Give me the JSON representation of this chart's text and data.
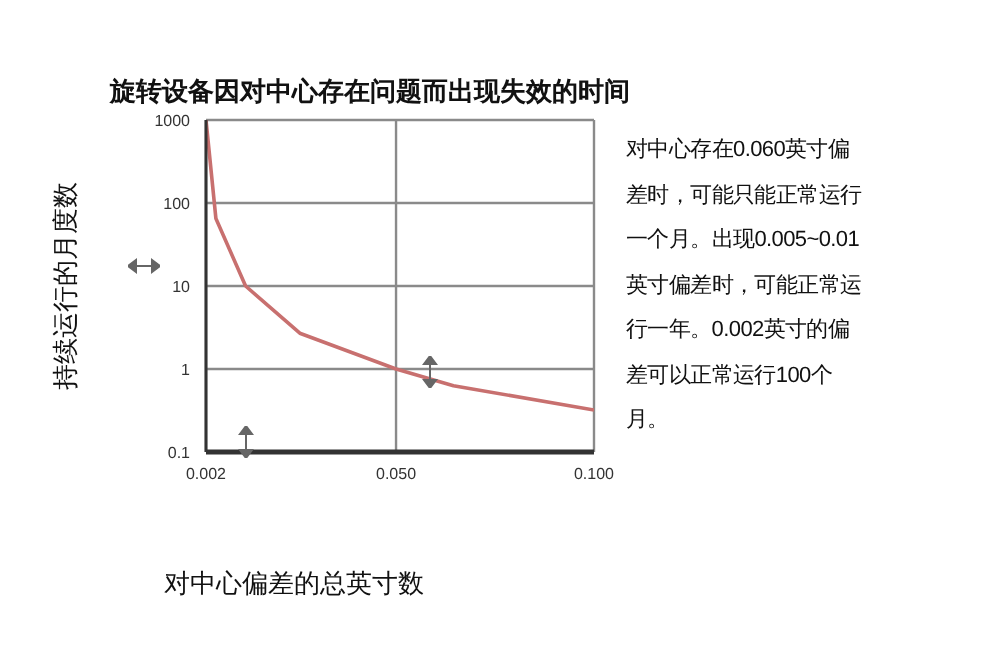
{
  "chart_data": {
    "type": "line",
    "title": "旋转设备因对中心存在问题而出现失效的时间",
    "xlabel": "对中心偏差的总英寸数",
    "ylabel": "持续运行的月度数",
    "x": [
      0.002,
      0.0045,
      0.012,
      0.0257,
      0.05,
      0.0645,
      0.1
    ],
    "series": [
      {
        "color": "#c8706f",
        "values": [
          1000,
          65,
          10,
          2.7,
          1,
          0.63,
          0.32
        ]
      }
    ],
    "xlim": [
      0.002,
      0.1
    ],
    "xticks": [
      {
        "value": 0.002,
        "label": "0.002"
      },
      {
        "value": 0.05,
        "label": "0.050"
      },
      {
        "value": 0.1,
        "label": "0.100"
      }
    ],
    "ylim": [
      0.1,
      1000
    ],
    "yticks": [
      0.1,
      1,
      10,
      100,
      1000
    ],
    "log": true,
    "grid": true,
    "marker": "none",
    "line_style": "solid",
    "annotations": [
      "对中心存在0.060英寸偏差时，可能只能正常运行一个月。出现0.005~0.01英寸偏差时，可能正常运行一年。0.002英寸的偏差可以正常运行100个月。"
    ]
  }
}
